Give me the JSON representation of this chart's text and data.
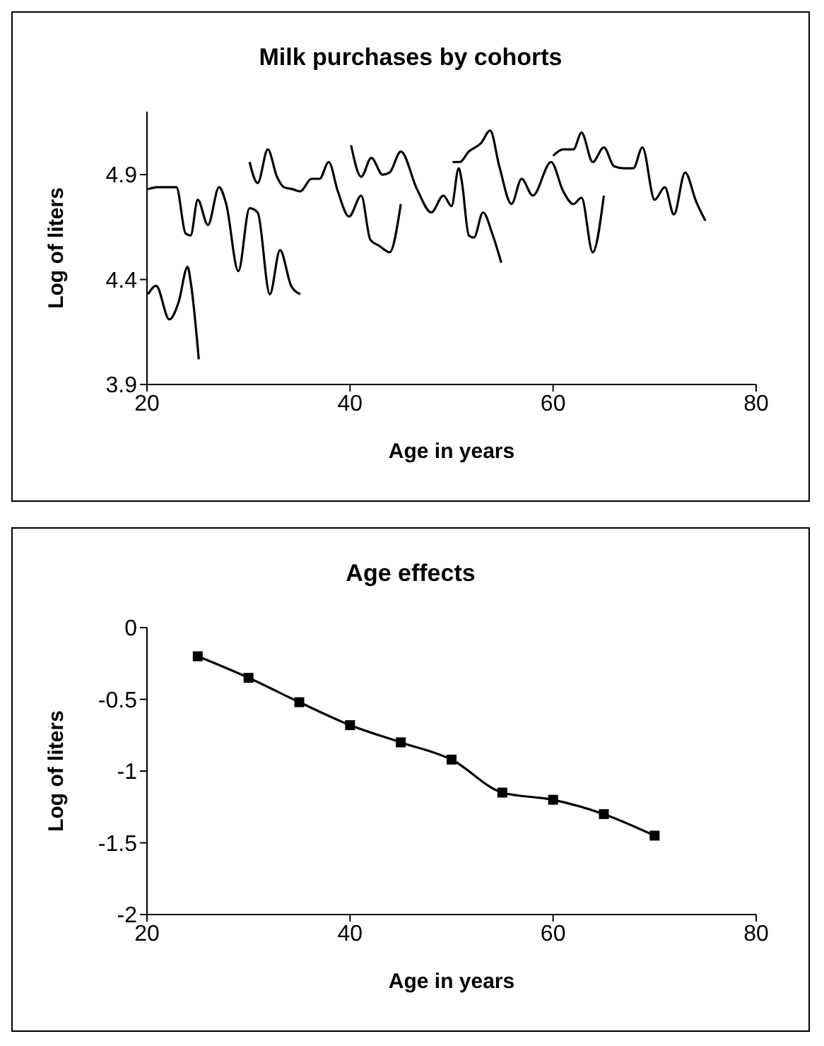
{
  "chart_data": [
    {
      "type": "line",
      "title": "Milk purchases by cohorts",
      "xlabel": "Age in years",
      "ylabel": "Log of liters",
      "xlim": [
        20,
        80
      ],
      "xticks": [
        20,
        40,
        60,
        80
      ],
      "ylim": [
        3.9,
        5.2
      ],
      "yticks": [
        3.9,
        4.4,
        4.9
      ],
      "grid": false,
      "legend": false,
      "marker": "none",
      "line_style": "solid",
      "series": [
        {
          "color": "#000000",
          "x": [
            20.1,
            20.9,
            22.2,
            23.1,
            24.0,
            24.3,
            25.1
          ],
          "values": [
            4.33,
            4.37,
            4.21,
            4.29,
            4.46,
            4.39,
            4.02
          ]
        },
        {
          "color": "#000000",
          "x": [
            20.1,
            21.0,
            22.9,
            23.8,
            24.3,
            25.0,
            26.0,
            27.1,
            27.8,
            29.0,
            30.1,
            30.9,
            32.1,
            33.1,
            34.2,
            35.1
          ],
          "values": [
            4.83,
            4.84,
            4.84,
            4.62,
            4.61,
            4.78,
            4.66,
            4.84,
            4.76,
            4.44,
            4.74,
            4.72,
            4.33,
            4.54,
            4.37,
            4.33
          ]
        },
        {
          "color": "#000000",
          "x": [
            30.1,
            30.9,
            31.9,
            32.8,
            33.5,
            34.4,
            35.1,
            36.2,
            37.0,
            37.9,
            38.8,
            39.9,
            41.1,
            42.0,
            42.9,
            43.9,
            45.0
          ],
          "values": [
            4.96,
            4.86,
            5.02,
            4.89,
            4.84,
            4.83,
            4.82,
            4.88,
            4.88,
            4.96,
            4.82,
            4.7,
            4.8,
            4.59,
            4.56,
            4.53,
            4.76
          ]
        },
        {
          "color": "#000000",
          "x": [
            40.1,
            41.1,
            42.1,
            43.2,
            43.9,
            45.0,
            46.6,
            48.0,
            49.2,
            50.0,
            50.7,
            51.0,
            51.7,
            52.2,
            53.1,
            54.0,
            54.9
          ],
          "values": [
            5.04,
            4.89,
            4.98,
            4.9,
            4.91,
            5.01,
            4.83,
            4.72,
            4.8,
            4.75,
            4.93,
            4.87,
            4.61,
            4.6,
            4.72,
            4.62,
            4.48
          ]
        },
        {
          "color": "#000000",
          "x": [
            50.1,
            50.8,
            51.7,
            52.9,
            53.8,
            54.7,
            55.9,
            56.9,
            58.0,
            59.8,
            61.0,
            62.0,
            62.8,
            63.9,
            65.0
          ],
          "values": [
            4.96,
            4.96,
            5.01,
            5.05,
            5.11,
            4.94,
            4.76,
            4.88,
            4.8,
            4.96,
            4.82,
            4.76,
            4.79,
            4.53,
            4.8
          ]
        },
        {
          "color": "#000000",
          "x": [
            60.0,
            61.0,
            62.0,
            62.8,
            63.9,
            65.0,
            66.0,
            67.0,
            67.9,
            68.8,
            70.0,
            71.0,
            71.9,
            73.0,
            74.1,
            75.0
          ],
          "values": [
            4.99,
            5.02,
            5.02,
            5.1,
            4.96,
            5.03,
            4.94,
            4.93,
            4.93,
            5.03,
            4.78,
            4.84,
            4.71,
            4.91,
            4.77,
            4.68
          ]
        }
      ]
    },
    {
      "type": "line",
      "title": "Age effects",
      "xlabel": "Age in years",
      "ylabel": "Log of liters",
      "xlim": [
        20,
        80
      ],
      "xticks": [
        20,
        40,
        60,
        80
      ],
      "ylim": [
        -2,
        0
      ],
      "yticks": [
        -2,
        -1.5,
        -1,
        -0.5,
        0
      ],
      "grid": false,
      "legend": false,
      "marker": "square",
      "line_style": "solid",
      "series": [
        {
          "color": "#000000",
          "x": [
            25,
            30,
            35,
            40,
            45,
            50,
            55,
            60,
            65,
            70
          ],
          "values": [
            -0.2,
            -0.35,
            -0.52,
            -0.68,
            -0.8,
            -0.92,
            -1.15,
            -1.2,
            -1.3,
            -1.45
          ]
        }
      ]
    }
  ]
}
